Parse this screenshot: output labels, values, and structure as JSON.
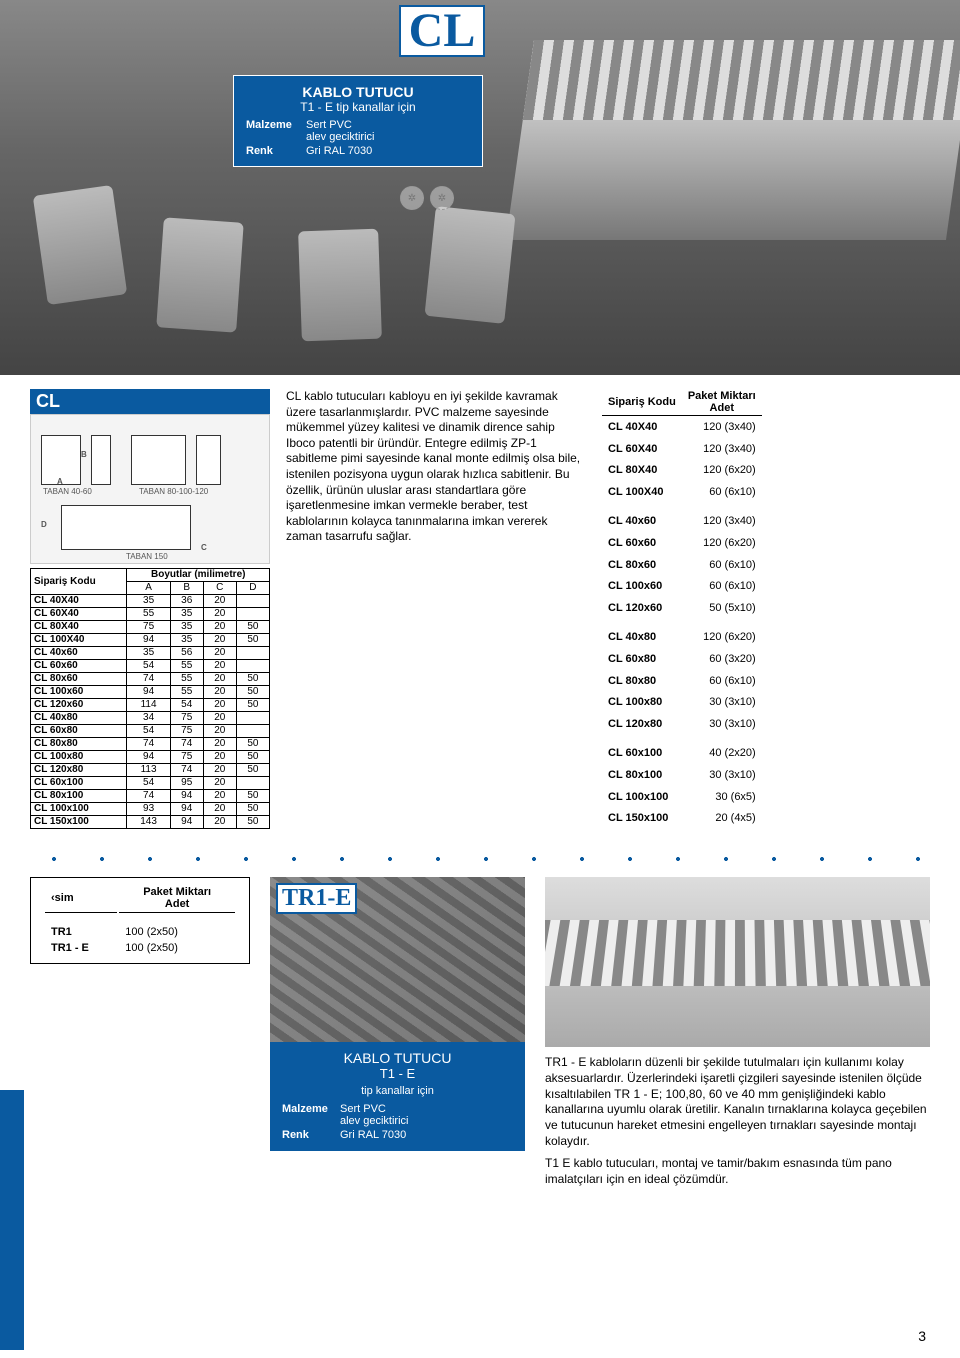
{
  "colors": {
    "brand": "#0a5aa0",
    "text": "#000000",
    "bg": "#ffffff"
  },
  "hero": {
    "logo_text": "CL",
    "product": {
      "title": "KABLO TUTUCU",
      "subtitle": "T1 - E tip kanallar için",
      "rows": [
        {
          "k": "Malzeme",
          "v": "Sert PVC\nalev geciktirici"
        },
        {
          "k": "Renk",
          "v": "Gri RAL 7030"
        }
      ]
    }
  },
  "mid": {
    "cl_bar": "CL",
    "diagram_labels": [
      "TABAN 40-60",
      "TABAN 80-100-120",
      "TABAN 150",
      "A",
      "B",
      "C",
      "D"
    ],
    "desc": "CL kablo tutucuları kabloyu en iyi şekilde kavramak üzere tasarlanmışlardır. PVC malzeme sayesinde mükemmel yüzey kalitesi ve dinamik dirence sahip Iboco patentli bir üründür. Entegre edilmiş ZP-1 sabitleme pimi sayesinde kanal monte edilmiş olsa bile, istenilen pozisyona uygun olarak hızlıca sabitlenir. Bu özellik, ürünün uluslar arası standartlara göre işaretlenmesine imkan vermekle beraber, test kablolarının kolayca tanınmalarına imkan vererek zaman tasarrufu sağlar.",
    "dim_table": {
      "caption": "Boyutlar (milimetre)",
      "code_head": "Sipariş Kodu",
      "cols": [
        "A",
        "B",
        "C",
        "D"
      ],
      "rows": [
        [
          "CL 40X40",
          "35",
          "36",
          "20",
          ""
        ],
        [
          "CL 60X40",
          "55",
          "35",
          "20",
          ""
        ],
        [
          "CL 80X40",
          "75",
          "35",
          "20",
          "50"
        ],
        [
          "CL 100X40",
          "94",
          "35",
          "20",
          "50"
        ],
        [
          "CL 40x60",
          "35",
          "56",
          "20",
          ""
        ],
        [
          "CL 60x60",
          "54",
          "55",
          "20",
          ""
        ],
        [
          "CL 80x60",
          "74",
          "55",
          "20",
          "50"
        ],
        [
          "CL 100x60",
          "94",
          "55",
          "20",
          "50"
        ],
        [
          "CL 120x60",
          "114",
          "54",
          "20",
          "50"
        ],
        [
          "CL 40x80",
          "34",
          "75",
          "20",
          ""
        ],
        [
          "CL 60x80",
          "54",
          "75",
          "20",
          ""
        ],
        [
          "CL 80x80",
          "74",
          "74",
          "20",
          "50"
        ],
        [
          "CL 100x80",
          "94",
          "75",
          "20",
          "50"
        ],
        [
          "CL 120x80",
          "113",
          "74",
          "20",
          "50"
        ],
        [
          "CL 60x100",
          "54",
          "95",
          "20",
          ""
        ],
        [
          "CL 80x100",
          "74",
          "94",
          "20",
          "50"
        ],
        [
          "CL 100x100",
          "93",
          "94",
          "20",
          "50"
        ],
        [
          "CL 150x100",
          "143",
          "94",
          "20",
          "50"
        ]
      ]
    },
    "pack_table": {
      "head_code": "Sipariş Kodu",
      "head_qty": "Paket Miktarı\nAdet",
      "groups": [
        [
          [
            "CL 40X40",
            "120 (3x40)"
          ],
          [
            "CL 60X40",
            "120 (3x40)"
          ],
          [
            "CL 80X40",
            "120 (6x20)"
          ],
          [
            "CL 100X40",
            "60 (6x10)"
          ]
        ],
        [
          [
            "CL 40x60",
            "120 (3x40)"
          ],
          [
            "CL 60x60",
            "120 (6x20)"
          ],
          [
            "CL 80x60",
            "60 (6x10)"
          ],
          [
            "CL 100x60",
            "60 (6x10)"
          ],
          [
            "CL 120x60",
            "50 (5x10)"
          ]
        ],
        [
          [
            "CL 40x80",
            "120 (6x20)"
          ],
          [
            "CL 60x80",
            "60 (3x20)"
          ],
          [
            "CL 80x80",
            "60 (6x10)"
          ],
          [
            "CL 100x80",
            "30 (3x10)"
          ],
          [
            "CL 120x80",
            "30 (3x10)"
          ]
        ],
        [
          [
            "CL 60x100",
            "40 (2x20)"
          ],
          [
            "CL 80x100",
            "30 (3x10)"
          ],
          [
            "CL 100x100",
            "30  (6x5)"
          ],
          [
            "CL 150x100",
            "20  (4x5)"
          ]
        ]
      ]
    }
  },
  "low": {
    "tr_box": {
      "head_name": "‹sim",
      "head_qty": "Paket Miktarı\nAdet",
      "rows": [
        [
          "TR1",
          "100 (2x50)"
        ],
        [
          "TR1 - E",
          "100 (2x50)"
        ]
      ]
    },
    "tr1e": {
      "logo": "TR1-E",
      "title": "KABLO TUTUCU",
      "subtitle": "T1 - E",
      "subtitle2": "tip kanallar için",
      "rows": [
        {
          "k": "Malzeme",
          "v": "Sert PVC\nalev geciktirici"
        },
        {
          "k": "Renk",
          "v": "Gri RAL 7030"
        }
      ]
    },
    "para1": "TR1 - E kabloların düzenli bir şekilde tutulmaları için kullanımı kolay aksesuarlardır. Üzerlerindeki işaretli çizgileri sayesinde istenilen ölçüde kısaltılabilen TR 1 - E; 100,80, 60 ve 40 mm genişliğindeki kablo kanallarına uyumlu olarak üretilir. Kanalın tırnaklarına kolayca geçebilen ve tutucunun hareket etmesini engelleyen tırnakları sayesinde montajı kolaydır.",
    "para2": "T1 E kablo tutucuları, montaj ve tamir/bakım esnasında tüm pano imalatçıları için en ideal çözümdür."
  },
  "page_number": "3"
}
